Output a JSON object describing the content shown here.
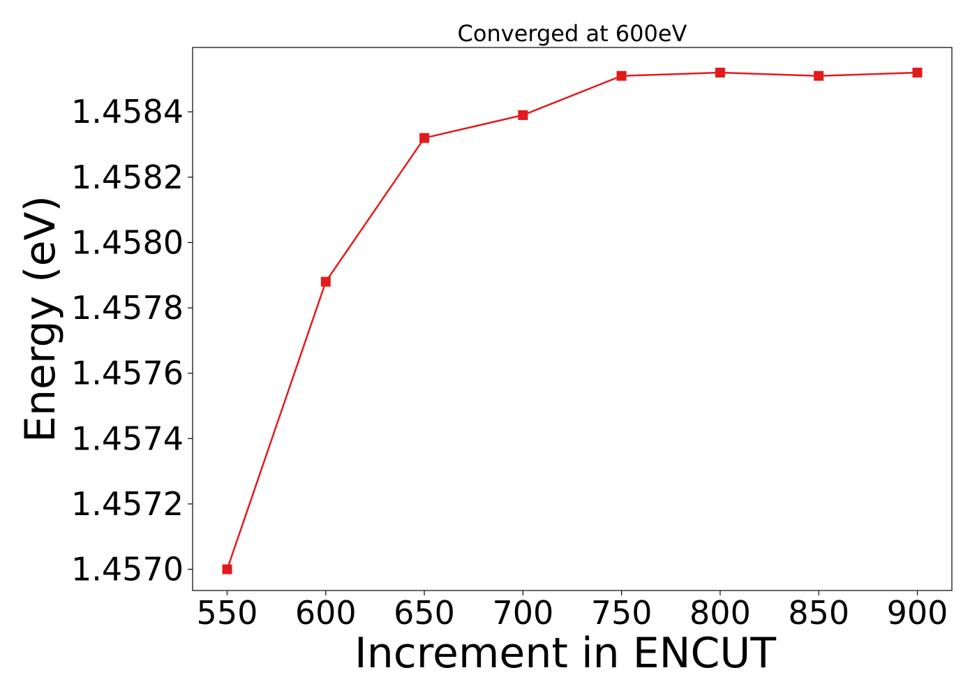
{
  "chart_data": {
    "type": "line",
    "title": "Converged at 600eV",
    "xlabel": "Increment in ENCUT",
    "ylabel": "Energy (eV)",
    "x": [
      550,
      600,
      650,
      700,
      750,
      800,
      850,
      900
    ],
    "series": [
      {
        "values": [
          1.457,
          1.45788,
          1.45832,
          1.45839,
          1.45851,
          1.45852,
          1.45851,
          1.45852
        ]
      }
    ],
    "xticks": [
      "550",
      "600",
      "650",
      "700",
      "750",
      "800",
      "850",
      "900"
    ],
    "yticks": [
      "1.4570",
      "1.4572",
      "1.4574",
      "1.4576",
      "1.4578",
      "1.4580",
      "1.4582",
      "1.4584"
    ],
    "xlim": [
      532.5,
      917.5
    ],
    "ylim": [
      1.456935,
      1.458597
    ],
    "grid": false,
    "marker": "square",
    "line_color": "#e31a1c"
  }
}
